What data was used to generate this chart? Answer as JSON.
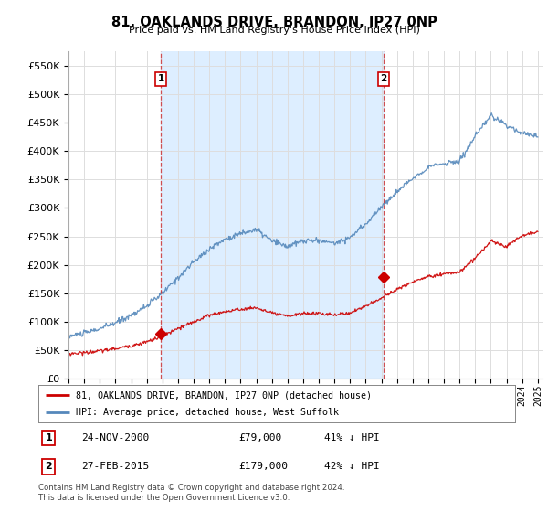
{
  "title": "81, OAKLANDS DRIVE, BRANDON, IP27 0NP",
  "subtitle": "Price paid vs. HM Land Registry's House Price Index (HPI)",
  "ylim": [
    0,
    575000
  ],
  "yticks": [
    0,
    50000,
    100000,
    150000,
    200000,
    250000,
    300000,
    350000,
    400000,
    450000,
    500000,
    550000
  ],
  "xlim_start": 1995.0,
  "xlim_end": 2025.3,
  "sale1_x": 2000.9,
  "sale1_y": 79000,
  "sale1_label": "1",
  "sale1_date": "24-NOV-2000",
  "sale1_price": "£79,000",
  "sale1_hpi": "41% ↓ HPI",
  "sale2_x": 2015.15,
  "sale2_y": 179000,
  "sale2_label": "2",
  "sale2_date": "27-FEB-2015",
  "sale2_price": "£179,000",
  "sale2_hpi": "42% ↓ HPI",
  "legend_label_red": "81, OAKLANDS DRIVE, BRANDON, IP27 0NP (detached house)",
  "legend_label_blue": "HPI: Average price, detached house, West Suffolk",
  "footer": "Contains HM Land Registry data © Crown copyright and database right 2024.\nThis data is licensed under the Open Government Licence v3.0.",
  "red_color": "#cc0000",
  "blue_color": "#5588bb",
  "shade_color": "#ddeeff",
  "dashed_color": "#cc3333",
  "background_color": "#ffffff",
  "grid_color": "#dddddd",
  "blue_years": [
    1995,
    1996,
    1997,
    1998,
    1999,
    2000,
    2001,
    2002,
    2003,
    2004,
    2005,
    2006,
    2007,
    2008,
    2009,
    2010,
    2011,
    2012,
    2013,
    2014,
    2015,
    2016,
    2017,
    2018,
    2019,
    2020,
    2021,
    2022,
    2023,
    2024,
    2025
  ],
  "blue_vals": [
    75000,
    80000,
    88000,
    98000,
    112000,
    128000,
    150000,
    178000,
    205000,
    228000,
    245000,
    255000,
    262000,
    242000,
    232000,
    242000,
    243000,
    238000,
    248000,
    272000,
    302000,
    328000,
    352000,
    372000,
    378000,
    382000,
    425000,
    462000,
    445000,
    432000,
    425000
  ],
  "red_years": [
    1995,
    1996,
    1997,
    1998,
    1999,
    2000,
    2001,
    2002,
    2003,
    2004,
    2005,
    2006,
    2007,
    2008,
    2009,
    2010,
    2011,
    2012,
    2013,
    2014,
    2015,
    2016,
    2017,
    2018,
    2019,
    2020,
    2021,
    2022,
    2023,
    2024,
    2025
  ],
  "red_vals": [
    44000,
    46000,
    49000,
    53000,
    58000,
    65000,
    75000,
    88000,
    100000,
    112000,
    118000,
    122000,
    125000,
    115000,
    110000,
    115000,
    115000,
    112000,
    116000,
    128000,
    142000,
    157000,
    170000,
    180000,
    184000,
    187000,
    212000,
    242000,
    232000,
    252000,
    258000
  ]
}
